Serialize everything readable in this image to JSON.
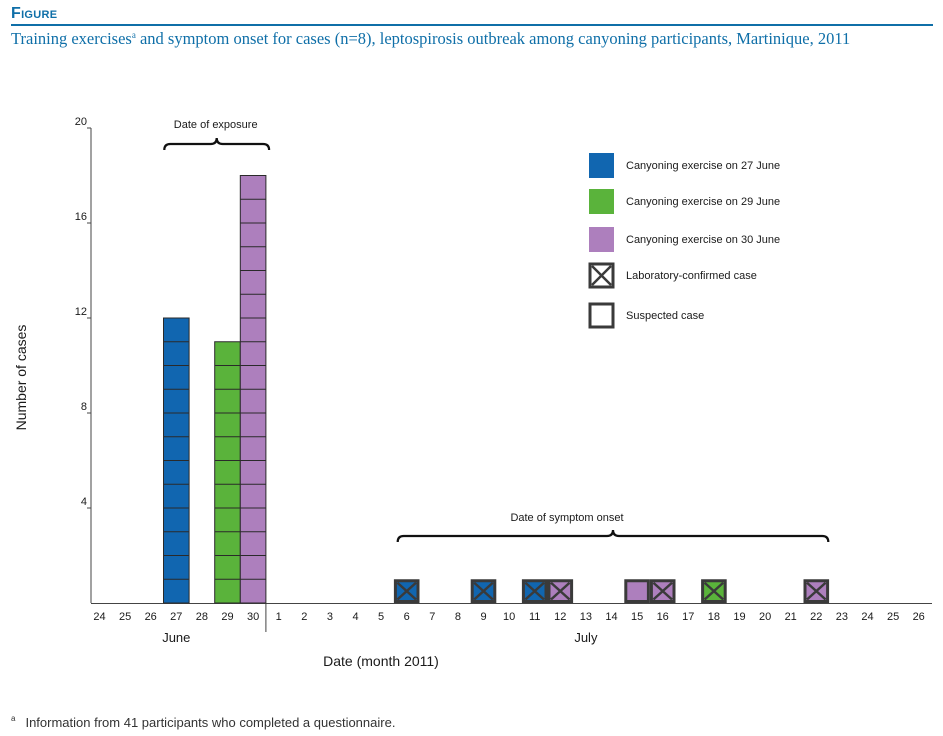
{
  "figure_label": "Figure",
  "title_part1": "Training exercises",
  "title_sup": "a",
  "title_part2": " and symptom onset for cases (n=8), leptospirosis outbreak among canyoning participants, Martinique, 2011",
  "footnote_mark": "a",
  "footnote_text": "Information from 41 participants who completed a questionnaire.",
  "colors": {
    "blue": "#1166b0",
    "green": "#5ab33b",
    "purple": "#ad7fbd",
    "outline": "#3a3a3a",
    "title": "#0f6fa8"
  },
  "chart_data": {
    "type": "bar",
    "ylabel": "Number of cases",
    "xlabel": "Date (month 2011)",
    "ylim": [
      0,
      20
    ],
    "yticks": [
      4,
      8,
      12,
      16,
      20
    ],
    "x": [
      "24",
      "25",
      "26",
      "27",
      "28",
      "29",
      "30",
      "1",
      "2",
      "3",
      "4",
      "5",
      "6",
      "7",
      "8",
      "9",
      "10",
      "11",
      "12",
      "13",
      "14",
      "15",
      "16",
      "17",
      "18",
      "19",
      "20",
      "21",
      "22",
      "23",
      "24",
      "25",
      "26"
    ],
    "months": [
      {
        "name": "June",
        "center_index": 3
      },
      {
        "name": "July",
        "center_index": 19
      }
    ],
    "exposure_bars": [
      {
        "x_index": 3,
        "value": 12,
        "series": "blue"
      },
      {
        "x_index": 5,
        "value": 11,
        "series": "green"
      },
      {
        "x_index": 6,
        "value": 18,
        "series": "purple"
      }
    ],
    "symptom_cases": [
      {
        "x_index": 12,
        "series": "blue",
        "confirmed": true
      },
      {
        "x_index": 15,
        "series": "blue",
        "confirmed": true
      },
      {
        "x_index": 17,
        "series": "blue",
        "confirmed": true
      },
      {
        "x_index": 18,
        "series": "purple",
        "confirmed": true
      },
      {
        "x_index": 21,
        "series": "purple",
        "confirmed": false
      },
      {
        "x_index": 22,
        "series": "purple",
        "confirmed": true
      },
      {
        "x_index": 24,
        "series": "green",
        "confirmed": true
      },
      {
        "x_index": 28,
        "series": "purple",
        "confirmed": true
      }
    ],
    "annotations": {
      "exposure": {
        "text": "Date of exposure",
        "from_index": 3,
        "to_index": 6
      },
      "onset": {
        "text": "Date of symptom onset",
        "from_index": 12,
        "to_index": 28
      }
    },
    "legend": [
      {
        "label": "Canyoning exercise on 27 June",
        "style": "blue"
      },
      {
        "label": "Canyoning exercise on 29 June",
        "style": "green"
      },
      {
        "label": "Canyoning exercise on 30 June",
        "style": "purple"
      },
      {
        "label": "Laboratory-confirmed case",
        "style": "confirmed"
      },
      {
        "label": "Suspected case",
        "style": "suspected"
      }
    ]
  }
}
